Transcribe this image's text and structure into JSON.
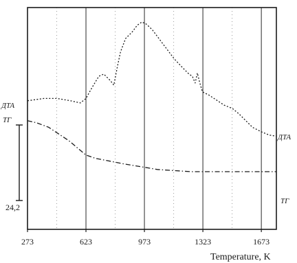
{
  "chart_data": {
    "type": "line",
    "title": "",
    "xlabel": "Temperature, K",
    "ylabel": "",
    "xlim": [
      273,
      1763
    ],
    "x_ticks": [
      "273",
      "623",
      "973",
      "1323",
      "1673"
    ],
    "grid": "vertical dotted at 448, 798, 1148, 1498 K; solid at 623, 973, 1323, 1673 K",
    "scale_bar_label": "24,2",
    "series": [
      {
        "name": "ДТА",
        "label_left": "ДТА",
        "label_right": "ДТА",
        "style": "dotted",
        "points": [
          [
            273,
            0.58
          ],
          [
            370,
            0.59
          ],
          [
            450,
            0.59
          ],
          [
            530,
            0.58
          ],
          [
            590,
            0.57
          ],
          [
            623,
            0.59
          ],
          [
            660,
            0.64
          ],
          [
            700,
            0.69
          ],
          [
            730,
            0.7
          ],
          [
            770,
            0.67
          ],
          [
            790,
            0.65
          ],
          [
            810,
            0.73
          ],
          [
            830,
            0.8
          ],
          [
            860,
            0.86
          ],
          [
            900,
            0.89
          ],
          [
            930,
            0.92
          ],
          [
            958,
            0.935
          ],
          [
            985,
            0.925
          ],
          [
            1020,
            0.9
          ],
          [
            1060,
            0.86
          ],
          [
            1100,
            0.82
          ],
          [
            1150,
            0.77
          ],
          [
            1200,
            0.73
          ],
          [
            1240,
            0.7
          ],
          [
            1260,
            0.69
          ],
          [
            1277,
            0.66
          ],
          [
            1290,
            0.705
          ],
          [
            1303,
            0.665
          ],
          [
            1320,
            0.62
          ],
          [
            1360,
            0.605
          ],
          [
            1400,
            0.585
          ],
          [
            1450,
            0.56
          ],
          [
            1500,
            0.545
          ],
          [
            1540,
            0.52
          ],
          [
            1580,
            0.49
          ],
          [
            1620,
            0.46
          ],
          [
            1673,
            0.44
          ],
          [
            1720,
            0.425
          ],
          [
            1763,
            0.42
          ]
        ]
      },
      {
        "name": "ТГ",
        "label_left": "ТГ",
        "label_right": "ТГ",
        "style": "dash-dot",
        "points": [
          [
            273,
            0.49
          ],
          [
            330,
            0.48
          ],
          [
            400,
            0.46
          ],
          [
            460,
            0.43
          ],
          [
            520,
            0.4
          ],
          [
            560,
            0.375
          ],
          [
            623,
            0.335
          ],
          [
            680,
            0.32
          ],
          [
            750,
            0.31
          ],
          [
            850,
            0.295
          ],
          [
            973,
            0.28
          ],
          [
            1050,
            0.27
          ],
          [
            1150,
            0.265
          ],
          [
            1250,
            0.26
          ],
          [
            1323,
            0.26
          ],
          [
            1450,
            0.26
          ],
          [
            1550,
            0.26
          ],
          [
            1673,
            0.26
          ],
          [
            1763,
            0.26
          ]
        ]
      }
    ]
  }
}
